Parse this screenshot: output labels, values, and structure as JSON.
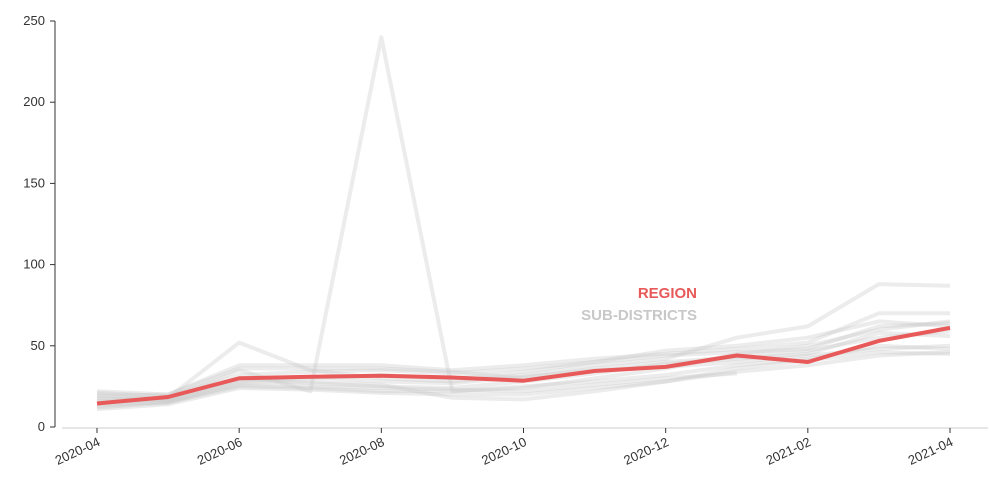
{
  "chart_data": {
    "type": "line",
    "categories": [
      "2020-04",
      null,
      "2020-06",
      null,
      "2020-08",
      null,
      "2020-10",
      null,
      "2020-12",
      null,
      "2021-02",
      null,
      "2021-04"
    ],
    "series": [
      {
        "name": "REGION",
        "color": "#e85a5a",
        "values": [
          14.5,
          18.5,
          30,
          31,
          31.5,
          30.5,
          28.5,
          34.5,
          37,
          44,
          40,
          53,
          61
        ]
      }
    ],
    "background_series": {
      "name": "SUB-DISTRICTS",
      "color": "#c8c8c8",
      "lines": [
        [
          20,
          17,
          35,
          22,
          240,
          22,
          24,
          30,
          36,
          45,
          50,
          60,
          65
        ],
        [
          16,
          18,
          52,
          35,
          30,
          28,
          32,
          38,
          42,
          55,
          62,
          88,
          87
        ],
        [
          22,
          20,
          38,
          38,
          38,
          35,
          38,
          42,
          45,
          48,
          52,
          70,
          70
        ],
        [
          12,
          15,
          25,
          24,
          22,
          22,
          25,
          28,
          32,
          38,
          42,
          50,
          48
        ],
        [
          18,
          16,
          28,
          30,
          32,
          30,
          34,
          40,
          44,
          46,
          48,
          62,
          64
        ],
        [
          11,
          14,
          24,
          23,
          21,
          20,
          20,
          24,
          28,
          34,
          38,
          44,
          46
        ],
        [
          21,
          19,
          32,
          34,
          35,
          33,
          36,
          40,
          47,
          50,
          55,
          65,
          62
        ],
        [
          15,
          17,
          30,
          27,
          25,
          24,
          28,
          33,
          39,
          42,
          45,
          58,
          56
        ],
        [
          19,
          20,
          36,
          36,
          36,
          34,
          30,
          36,
          40,
          43,
          47,
          55,
          59
        ],
        [
          13,
          16,
          26,
          25,
          24,
          23,
          22,
          26,
          30,
          33,
          null,
          null,
          null
        ],
        [
          17,
          18,
          29,
          31,
          28,
          27,
          31,
          35,
          37,
          40,
          44,
          48,
          50
        ],
        [
          14,
          15,
          27,
          28,
          26,
          18,
          17,
          22,
          28,
          36,
          41,
          46,
          45
        ]
      ]
    },
    "ylim": [
      0,
      250
    ],
    "yticks": [
      0,
      50,
      100,
      150,
      200,
      250
    ]
  }
}
